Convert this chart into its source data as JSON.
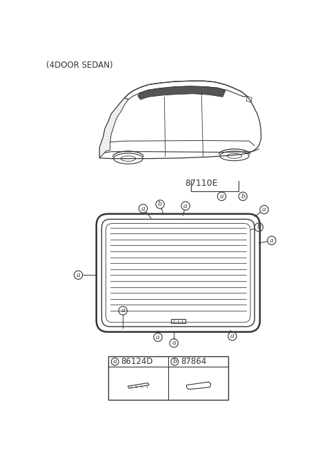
{
  "title": "(4DOOR SEDAN)",
  "part_number_main": "87110E",
  "part_a_code": "86124D",
  "part_b_code": "87864",
  "bg_color": "#ffffff",
  "line_color": "#333333",
  "label_a": "a",
  "label_b": "b"
}
